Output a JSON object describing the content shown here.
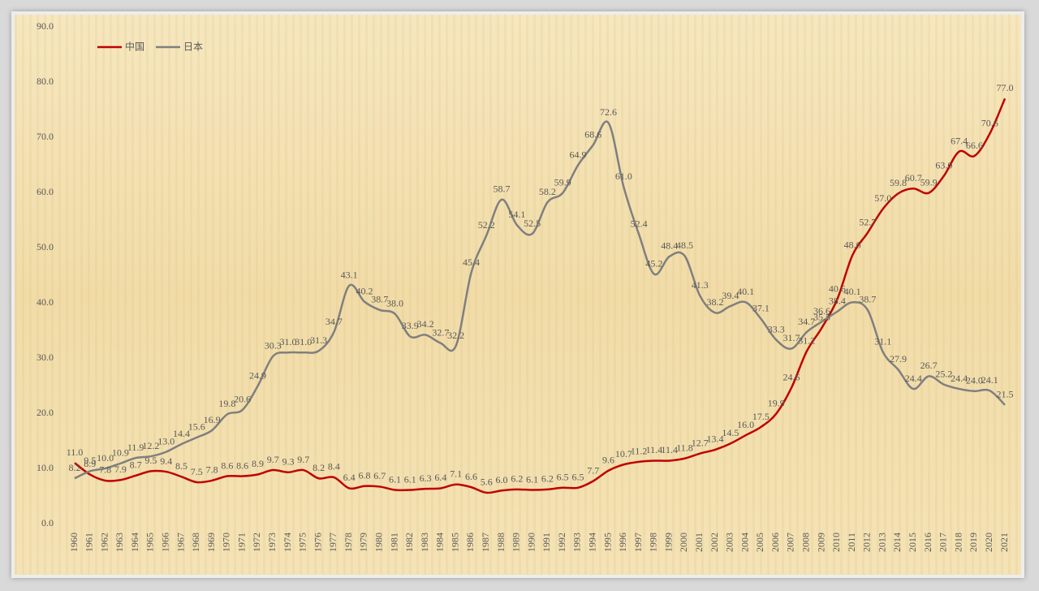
{
  "chart_data": {
    "type": "line",
    "categories": [
      "1960",
      "1961",
      "1962",
      "1963",
      "1964",
      "1965",
      "1966",
      "1967",
      "1968",
      "1969",
      "1970",
      "1971",
      "1972",
      "1973",
      "1974",
      "1975",
      "1976",
      "1977",
      "1978",
      "1979",
      "1980",
      "1981",
      "1982",
      "1983",
      "1984",
      "1985",
      "1986",
      "1987",
      "1988",
      "1989",
      "1990",
      "1991",
      "1992",
      "1993",
      "1994",
      "1995",
      "1996",
      "1997",
      "1998",
      "1999",
      "2000",
      "2001",
      "2002",
      "2003",
      "2004",
      "2005",
      "2006",
      "2007",
      "2008",
      "2009",
      "2010",
      "2011",
      "2012",
      "2013",
      "2014",
      "2015",
      "2016",
      "2017",
      "2018",
      "2019",
      "2020",
      "2021"
    ],
    "series": [
      {
        "name": "中国",
        "color": "#c00000",
        "values": [
          11.0,
          8.9,
          7.8,
          7.9,
          8.7,
          9.5,
          9.4,
          8.5,
          7.5,
          7.8,
          8.6,
          8.6,
          8.9,
          9.7,
          9.3,
          9.7,
          8.2,
          8.4,
          6.4,
          6.8,
          6.7,
          6.1,
          6.1,
          6.3,
          6.4,
          7.1,
          6.6,
          5.6,
          6.0,
          6.2,
          6.1,
          6.2,
          6.5,
          6.5,
          7.7,
          9.6,
          10.7,
          11.2,
          11.4,
          11.4,
          11.8,
          12.7,
          13.4,
          14.5,
          16.0,
          17.5,
          19.9,
          24.6,
          31.2,
          35.5,
          40.6,
          48.6,
          52.7,
          57.0,
          59.8,
          60.7,
          59.9,
          63.0,
          67.4,
          66.6,
          70.6,
          77.0
        ],
        "value_labels": [
          "11.0",
          "8.9",
          "7.8",
          "7.9",
          "8.7",
          "9.5",
          "9.4",
          "8.5",
          "7.5",
          "7.8",
          "8.6",
          "8.6",
          "8.9",
          "9.7",
          "9.3",
          "9.7",
          "8.2",
          "8.4",
          "6.4",
          "6.8",
          "6.7",
          "6.1",
          "6.1",
          "6.3",
          "6.4",
          "7.1",
          "6.6",
          "5.6",
          "6.0",
          "6.2",
          "6.1",
          "6.2",
          "6.5",
          "6.5",
          "7.7",
          "9.6",
          "10.7",
          "11.2",
          "11.4",
          "11.4",
          "11.8",
          "12.7",
          "13.4",
          "14.5",
          "16.0",
          "17.5",
          "19.9",
          "24.6",
          "31.2",
          "35.5",
          "40.6",
          "48.6",
          "52.7",
          "57.0",
          "59.8",
          "60.7",
          "59.9",
          "63.0",
          "67.4",
          "66.6",
          "70.6",
          "77.0"
        ]
      },
      {
        "name": "日本",
        "color": "#7f7f7f",
        "values": [
          8.2,
          9.5,
          10.0,
          10.9,
          11.9,
          12.2,
          13.0,
          14.4,
          15.6,
          16.9,
          19.8,
          20.6,
          24.9,
          30.3,
          31.0,
          31.0,
          31.3,
          34.7,
          43.1,
          40.2,
          38.7,
          38.0,
          33.9,
          34.2,
          32.7,
          32.2,
          45.4,
          52.2,
          58.7,
          54.1,
          52.5,
          58.2,
          59.9,
          64.9,
          68.6,
          72.6,
          61.0,
          52.4,
          45.2,
          48.4,
          48.5,
          41.3,
          38.2,
          39.4,
          40.1,
          37.1,
          33.3,
          31.7,
          34.7,
          36.6,
          38.4,
          40.1,
          38.7,
          31.1,
          27.9,
          24.4,
          26.7,
          25.2,
          24.4,
          24.0,
          24.1,
          21.5
        ],
        "value_labels": [
          "8.2",
          "9.5",
          "10.0",
          "10.9",
          "11.9",
          "12.2",
          "13.0",
          "14.4",
          "15.6",
          "16.9",
          "19.8",
          "20.6",
          "24.9",
          "30.3",
          "31.0",
          "31.0",
          "31.3",
          "34.7",
          "43.1",
          "40.2",
          "38.7",
          "38.0",
          "33.9",
          "34.2",
          "32.7",
          "32.2",
          "45.4",
          "52.2",
          "58.7",
          "54.1",
          "52.5",
          "58.2",
          "59.9",
          "64.9",
          "68.6",
          "72.6",
          "61.0",
          "52.4",
          "45.2",
          "48.4",
          "48.5",
          "41.3",
          "38.2",
          "39.4",
          "40.1",
          "37.1",
          "33.3",
          "31.7",
          "34.7",
          "36.6",
          "38.4",
          "40.1",
          "38.7",
          "31.1",
          "27.9",
          "24.4",
          "26.7",
          "25.2",
          "24.4",
          "24.0",
          "24.1",
          "21.5"
        ]
      }
    ],
    "ylim": [
      0,
      90
    ],
    "yticks": [
      {
        "value": 0,
        "label": "0.0"
      },
      {
        "value": 10,
        "label": "10.0"
      },
      {
        "value": 20,
        "label": "20.0"
      },
      {
        "value": 30,
        "label": "30.0"
      },
      {
        "value": 40,
        "label": "40.0"
      },
      {
        "value": 50,
        "label": "50.0"
      },
      {
        "value": 60,
        "label": "60.0"
      },
      {
        "value": 70,
        "label": "70.0"
      },
      {
        "value": 80,
        "label": "80.0"
      },
      {
        "value": 90,
        "label": "90.0"
      }
    ],
    "grid": false,
    "legend": "top-left"
  }
}
